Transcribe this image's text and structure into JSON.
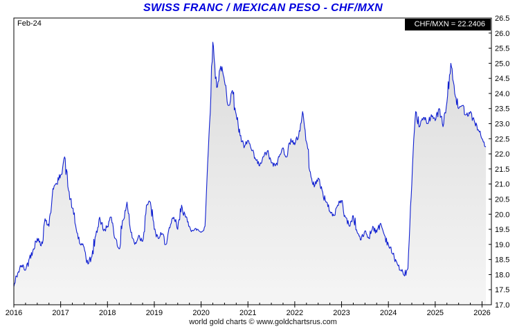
{
  "title": "SWISS FRANC / MEXICAN PESO - CHF/MXN",
  "date_label": "Feb-24",
  "quote_label": "CHF/MXN = 22.2406",
  "footer": "world gold charts © www.goldchartsrus.com",
  "colors": {
    "title": "#0000dd",
    "line": "#0f1fd0",
    "fill_top": "#d9d9d9",
    "fill_bottom": "#f5f5f5",
    "quote_bg": "#000000",
    "quote_fg": "#ffffff",
    "axis": "#000000"
  },
  "chart_data": {
    "type": "line",
    "title": "SWISS FRANC / MEXICAN PESO - CHF/MXN",
    "xlabel": "",
    "ylabel": "CHF/MXN",
    "xlim": [
      2016,
      2026.2
    ],
    "ylim": [
      17.0,
      26.5
    ],
    "grid": false,
    "area_fill": true,
    "x_ticks": [
      2016,
      2017,
      2018,
      2019,
      2020,
      2021,
      2022,
      2023,
      2024,
      2025,
      2026
    ],
    "y_ticks": [
      17.0,
      17.5,
      18.0,
      18.5,
      19.0,
      19.5,
      20.0,
      20.5,
      21.0,
      21.5,
      22.0,
      22.5,
      23.0,
      23.5,
      24.0,
      24.5,
      25.0,
      25.5,
      26.0,
      26.5
    ],
    "last_value": 22.2406,
    "series": [
      {
        "name": "CHF/MXN",
        "points": [
          [
            2016.0,
            17.6
          ],
          [
            2016.083,
            18.05
          ],
          [
            2016.167,
            18.3
          ],
          [
            2016.25,
            18.15
          ],
          [
            2016.333,
            18.55
          ],
          [
            2016.417,
            18.85
          ],
          [
            2016.5,
            19.2
          ],
          [
            2016.583,
            18.95
          ],
          [
            2016.667,
            19.85
          ],
          [
            2016.75,
            19.6
          ],
          [
            2016.833,
            20.85
          ],
          [
            2016.917,
            21.0
          ],
          [
            2017.0,
            21.3
          ],
          [
            2017.083,
            21.9
          ],
          [
            2017.167,
            20.8
          ],
          [
            2017.25,
            20.2
          ],
          [
            2017.333,
            19.5
          ],
          [
            2017.417,
            19.0
          ],
          [
            2017.5,
            18.9
          ],
          [
            2017.583,
            18.35
          ],
          [
            2017.667,
            18.6
          ],
          [
            2017.75,
            19.3
          ],
          [
            2017.833,
            19.9
          ],
          [
            2017.917,
            19.45
          ],
          [
            2018.0,
            19.6
          ],
          [
            2018.083,
            19.9
          ],
          [
            2018.167,
            19.2
          ],
          [
            2018.25,
            18.85
          ],
          [
            2018.333,
            19.8
          ],
          [
            2018.417,
            20.4
          ],
          [
            2018.5,
            19.4
          ],
          [
            2018.583,
            19.0
          ],
          [
            2018.667,
            19.3
          ],
          [
            2018.75,
            19.1
          ],
          [
            2018.833,
            20.3
          ],
          [
            2018.917,
            20.4
          ],
          [
            2019.0,
            19.5
          ],
          [
            2019.083,
            19.2
          ],
          [
            2019.167,
            19.35
          ],
          [
            2019.25,
            19.0
          ],
          [
            2019.333,
            19.55
          ],
          [
            2019.417,
            19.9
          ],
          [
            2019.5,
            19.5
          ],
          [
            2019.583,
            20.3
          ],
          [
            2019.667,
            19.9
          ],
          [
            2019.75,
            19.6
          ],
          [
            2019.833,
            19.45
          ],
          [
            2019.917,
            19.5
          ],
          [
            2020.0,
            19.4
          ],
          [
            2020.083,
            19.6
          ],
          [
            2020.167,
            22.6
          ],
          [
            2020.25,
            25.7
          ],
          [
            2020.333,
            24.2
          ],
          [
            2020.417,
            24.9
          ],
          [
            2020.5,
            24.4
          ],
          [
            2020.583,
            23.6
          ],
          [
            2020.667,
            24.1
          ],
          [
            2020.75,
            23.3
          ],
          [
            2020.833,
            22.6
          ],
          [
            2020.917,
            22.2
          ],
          [
            2021.0,
            22.45
          ],
          [
            2021.083,
            22.1
          ],
          [
            2021.167,
            21.8
          ],
          [
            2021.25,
            21.6
          ],
          [
            2021.333,
            21.9
          ],
          [
            2021.417,
            22.1
          ],
          [
            2021.5,
            21.7
          ],
          [
            2021.583,
            21.6
          ],
          [
            2021.667,
            21.9
          ],
          [
            2021.75,
            22.2
          ],
          [
            2021.833,
            21.9
          ],
          [
            2021.917,
            22.5
          ],
          [
            2022.0,
            22.3
          ],
          [
            2022.083,
            22.6
          ],
          [
            2022.167,
            23.4
          ],
          [
            2022.25,
            22.4
          ],
          [
            2022.333,
            21.4
          ],
          [
            2022.417,
            20.9
          ],
          [
            2022.5,
            21.2
          ],
          [
            2022.583,
            20.8
          ],
          [
            2022.667,
            20.4
          ],
          [
            2022.75,
            20.1
          ],
          [
            2022.833,
            19.95
          ],
          [
            2022.917,
            20.3
          ],
          [
            2023.0,
            20.45
          ],
          [
            2023.083,
            19.9
          ],
          [
            2023.167,
            19.6
          ],
          [
            2023.25,
            19.95
          ],
          [
            2023.333,
            19.4
          ],
          [
            2023.417,
            19.15
          ],
          [
            2023.5,
            19.45
          ],
          [
            2023.583,
            19.2
          ],
          [
            2023.667,
            19.6
          ],
          [
            2023.75,
            19.4
          ],
          [
            2023.833,
            19.7
          ],
          [
            2023.917,
            19.3
          ],
          [
            2024.0,
            19.0
          ],
          [
            2024.083,
            18.7
          ],
          [
            2024.167,
            18.45
          ],
          [
            2024.25,
            18.15
          ],
          [
            2024.333,
            17.98
          ],
          [
            2024.417,
            18.2
          ],
          [
            2024.5,
            21.0
          ],
          [
            2024.583,
            23.4
          ],
          [
            2024.667,
            22.9
          ],
          [
            2024.75,
            23.2
          ],
          [
            2024.833,
            23.0
          ],
          [
            2024.917,
            23.3
          ],
          [
            2025.0,
            23.1
          ],
          [
            2025.083,
            23.5
          ],
          [
            2025.167,
            22.9
          ],
          [
            2025.25,
            23.7
          ],
          [
            2025.333,
            25.0
          ],
          [
            2025.417,
            24.0
          ],
          [
            2025.5,
            23.5
          ],
          [
            2025.583,
            23.6
          ],
          [
            2025.667,
            23.3
          ],
          [
            2025.75,
            23.4
          ],
          [
            2025.833,
            23.1
          ],
          [
            2025.917,
            22.8
          ],
          [
            2026.0,
            22.5
          ],
          [
            2026.083,
            22.2406
          ]
        ]
      }
    ]
  }
}
